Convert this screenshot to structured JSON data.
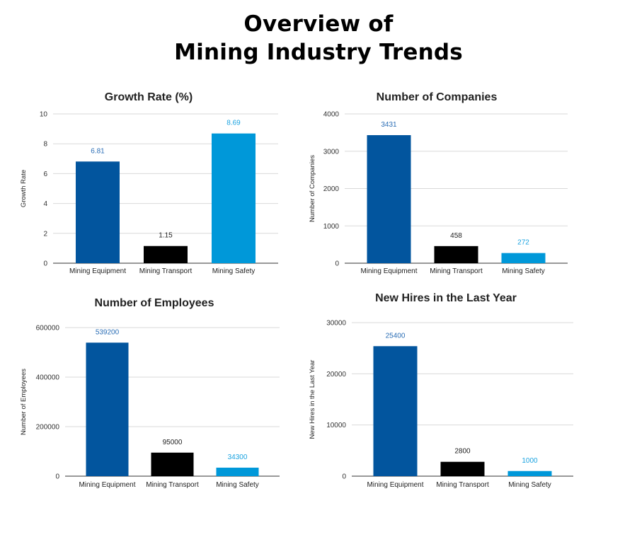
{
  "page": {
    "title_line1": "Overview of",
    "title_line2": "Mining Industry Trends"
  },
  "colors": {
    "equipment": "#02559e",
    "transport": "#000000",
    "safety": "#0098d9",
    "label_equipment": "#2a6db5",
    "label_transport": "#222222",
    "label_safety": "#1aa3e0"
  },
  "chart_data": [
    {
      "type": "bar",
      "title": "Growth Rate (%)",
      "ylabel": "Growth Rate",
      "xlabel": "",
      "categories": [
        "Mining Equipment",
        "Mining Transport",
        "Mining Safety"
      ],
      "values": [
        6.81,
        1.15,
        8.69
      ],
      "data_labels": [
        "6.81",
        "1.15",
        "8.69"
      ],
      "ylim": [
        0,
        10
      ],
      "yticks": [
        0,
        2,
        4,
        6,
        8,
        10
      ],
      "grid": true,
      "legend": "none"
    },
    {
      "type": "bar",
      "title": "Number of Companies",
      "ylabel": "Number of Companies",
      "xlabel": "",
      "categories": [
        "Mining Equipment",
        "Mining Transport",
        "Mining Safety"
      ],
      "values": [
        3431,
        458,
        272
      ],
      "data_labels": [
        "3431",
        "458",
        "272"
      ],
      "ylim": [
        0,
        4000
      ],
      "yticks": [
        0,
        1000,
        2000,
        3000,
        4000
      ],
      "grid": true,
      "legend": "none"
    },
    {
      "type": "bar",
      "title": "Number of Employees",
      "ylabel": "Number of Employees",
      "xlabel": "",
      "categories": [
        "Mining Equipment",
        "Mining Transport",
        "Mining Safety"
      ],
      "values": [
        539200,
        95000,
        34300
      ],
      "data_labels": [
        "539200",
        "95000",
        "34300"
      ],
      "ylim": [
        0,
        600000
      ],
      "yticks": [
        0,
        200000,
        400000,
        600000
      ],
      "grid": true,
      "legend": "none"
    },
    {
      "type": "bar",
      "title": "New Hires in the Last Year",
      "ylabel": "New Hires in the Last Year",
      "xlabel": "",
      "categories": [
        "Mining Equipment",
        "Mining Transport",
        "Mining Safety"
      ],
      "values": [
        25400,
        2800,
        1000
      ],
      "data_labels": [
        "25400",
        "2800",
        "1000"
      ],
      "ylim": [
        0,
        30000
      ],
      "yticks": [
        0,
        10000,
        20000,
        30000
      ],
      "grid": true,
      "legend": "none"
    }
  ]
}
